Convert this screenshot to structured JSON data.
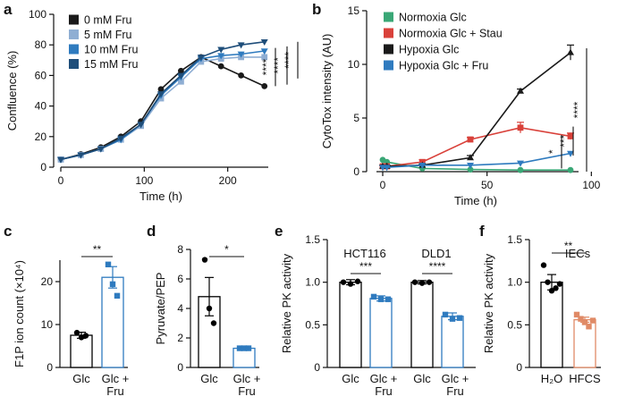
{
  "figure": {
    "letters": [
      "a",
      "b",
      "c",
      "d",
      "e",
      "f"
    ]
  },
  "chart_data": [
    {
      "id": "a",
      "type": "line",
      "xlabel": "Time (h)",
      "ylabel": "Confluence (%)",
      "xlim": [
        0,
        270
      ],
      "ylim": [
        0,
        100
      ],
      "xticks": [
        0,
        100,
        200
      ],
      "yticks": [
        0,
        20,
        40,
        60,
        80,
        100
      ],
      "legend_position": "top-left",
      "series": [
        {
          "name": "0 mM Fru",
          "color": "#1a1a1a",
          "marker": "circle",
          "x": [
            0,
            24,
            48,
            72,
            96,
            120,
            144,
            168,
            192,
            216,
            244
          ],
          "y": [
            5,
            8.5,
            13,
            20,
            30,
            51,
            63,
            72,
            66,
            60,
            53
          ]
        },
        {
          "name": "5 mM Fru",
          "color": "#8faed3",
          "marker": "square",
          "x": [
            0,
            24,
            48,
            72,
            96,
            120,
            144,
            168,
            192,
            216,
            244
          ],
          "y": [
            5,
            8,
            12,
            18,
            27,
            45,
            56,
            69,
            71,
            72,
            72
          ]
        },
        {
          "name": "10 mM Fru",
          "color": "#2f7bbf",
          "marker": "triangle-down",
          "x": [
            0,
            24,
            48,
            72,
            96,
            120,
            144,
            168,
            192,
            216,
            244
          ],
          "y": [
            5,
            8,
            12,
            18,
            28,
            47,
            59,
            71,
            73,
            74,
            76
          ]
        },
        {
          "name": "15 mM Fru",
          "color": "#1f4e7a",
          "marker": "triangle-down",
          "x": [
            0,
            24,
            48,
            72,
            96,
            120,
            144,
            168,
            192,
            216,
            244
          ],
          "y": [
            5,
            8,
            12,
            19,
            28,
            48,
            60,
            72,
            77,
            80,
            82
          ]
        }
      ],
      "significance": [
        "****",
        "****",
        "****"
      ]
    },
    {
      "id": "b",
      "type": "line",
      "xlabel": "Time (h)",
      "ylabel": "CytoTox intensity (AU)",
      "xlim": [
        -3,
        108
      ],
      "ylim": [
        0,
        15
      ],
      "xticks": [
        0,
        50,
        100
      ],
      "yticks": [
        0,
        5,
        10,
        15
      ],
      "legend_position": "top-left",
      "series": [
        {
          "name": "Normoxia Glc",
          "color": "#3aa776",
          "marker": "circle",
          "x": [
            0,
            2,
            19,
            42,
            66,
            90
          ],
          "y": [
            1.1,
            0.9,
            0.3,
            0.2,
            0.15,
            0.15
          ]
        },
        {
          "name": "Normoxia Glc + Stau",
          "color": "#d9413a",
          "marker": "square",
          "x": [
            0,
            2,
            19,
            42,
            66,
            90
          ],
          "y": [
            0.5,
            0.5,
            0.9,
            3.0,
            4.1,
            3.3
          ],
          "err": [
            0.1,
            0.1,
            0.2,
            0.2,
            0.5,
            0.3
          ]
        },
        {
          "name": "Hypoxia Glc",
          "color": "#1a1a1a",
          "marker": "triangle-up",
          "x": [
            0,
            2,
            19,
            42,
            66,
            90
          ],
          "y": [
            0.5,
            0.5,
            0.6,
            1.3,
            7.5,
            11.1
          ],
          "err": [
            0.1,
            0.1,
            0.1,
            0.2,
            0.2,
            0.7
          ]
        },
        {
          "name": "Hypoxia Glc + Fru",
          "color": "#2f7bbf",
          "marker": "triangle-down",
          "x": [
            0,
            2,
            19,
            42,
            66,
            90
          ],
          "y": [
            0.4,
            0.4,
            0.6,
            0.6,
            0.8,
            1.7
          ]
        }
      ],
      "significance": [
        "*",
        "***",
        "****"
      ]
    },
    {
      "id": "c",
      "type": "bar",
      "ylabel": "F1P ion count (×10⁴)",
      "ylim": [
        0,
        25
      ],
      "yticks": [
        0,
        10,
        20
      ],
      "categories": [
        "Glc",
        "Glc + Fru"
      ],
      "values": [
        7.5,
        21
      ],
      "errors": [
        0.7,
        2.5
      ],
      "bar_colors": [
        "#000000",
        "#2f7bbf"
      ],
      "point_colors": [
        "#000000",
        "#2f7bbf"
      ],
      "points": [
        [
          8.1,
          7.0,
          7.4
        ],
        [
          24.0,
          19.4,
          16.7
        ]
      ],
      "significance": [
        "**"
      ]
    },
    {
      "id": "d",
      "type": "bar",
      "ylabel": "Pyruvate/PEP",
      "ylim": [
        0,
        8
      ],
      "yticks": [
        0,
        2,
        4,
        6,
        8
      ],
      "categories": [
        "Glc",
        "Glc + Fru"
      ],
      "values": [
        4.8,
        1.3
      ],
      "errors": [
        1.3,
        0.1
      ],
      "bar_colors": [
        "#000000",
        "#2f7bbf"
      ],
      "point_colors": [
        "#000000",
        "#2f7bbf"
      ],
      "points": [
        [
          7.3,
          4.0,
          3.0
        ],
        [
          1.3,
          1.3,
          1.3
        ]
      ],
      "significance": [
        "*"
      ]
    },
    {
      "id": "e",
      "type": "bar",
      "ylabel": "Relative PK activity",
      "ylim": [
        0,
        1.5
      ],
      "yticks": [
        0,
        0.5,
        1.0,
        1.5
      ],
      "ytick_labels": [
        "0",
        "0.5",
        "1.0",
        "1.5"
      ],
      "groups": [
        "HCT116",
        "DLD1"
      ],
      "categories": [
        "Glc",
        "Glc + Fru",
        "Glc",
        "Glc + Fru"
      ],
      "values": [
        1.0,
        0.81,
        1.0,
        0.6
      ],
      "errors": [
        0.03,
        0.03,
        0.02,
        0.04
      ],
      "bar_colors": [
        "#000000",
        "#2f7bbf",
        "#000000",
        "#2f7bbf"
      ],
      "point_colors": [
        "#000000",
        "#2f7bbf",
        "#000000",
        "#2f7bbf"
      ],
      "points": [
        [
          1.0,
          0.98,
          1.01
        ],
        [
          0.83,
          0.8,
          0.8
        ],
        [
          1.0,
          0.99,
          1.0
        ],
        [
          0.62,
          0.57,
          0.58
        ]
      ],
      "significance": [
        "***",
        "****"
      ]
    },
    {
      "id": "f",
      "type": "bar",
      "title": "IECs",
      "ylabel": "Relative PK activity",
      "ylim": [
        0,
        1.5
      ],
      "yticks": [
        0,
        0.5,
        1.0,
        1.5
      ],
      "ytick_labels": [
        "0",
        "0.5",
        "1.0",
        "1.5"
      ],
      "categories": [
        "H₂O",
        "HFCS"
      ],
      "values": [
        1.0,
        0.56
      ],
      "errors": [
        0.09,
        0.03
      ],
      "bar_colors": [
        "#000000",
        "#e08a66"
      ],
      "point_colors": [
        "#000000",
        "#e08a66"
      ],
      "points": [
        [
          1.2,
          1.0,
          0.9,
          0.93,
          0.98
        ],
        [
          0.62,
          0.57,
          0.53,
          0.48,
          0.55
        ]
      ],
      "significance": [
        "**"
      ]
    }
  ]
}
